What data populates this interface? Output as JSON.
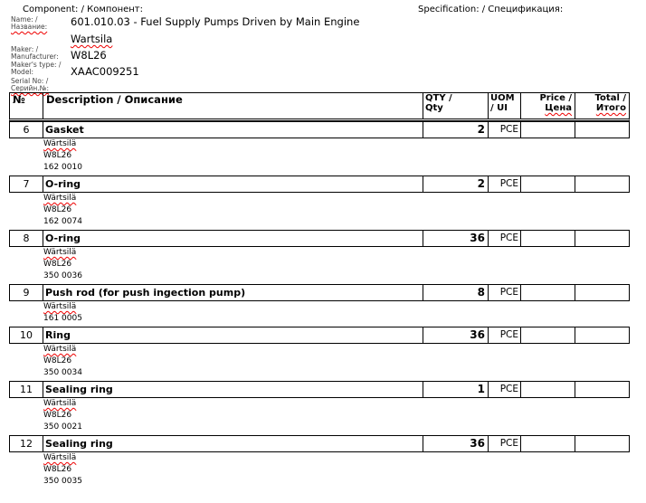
{
  "header": {
    "component_label": "Component: / Компонент:",
    "specification_label": "Specification: / Спецификация:",
    "name_label_1": "Name: /",
    "name_label_2": "Название:",
    "name_value": "601.010.03 - Fuel Supply Pumps Driven by Main Engine",
    "maker_value": "Wartsila",
    "maker_label_1": "Maker: /",
    "maker_label_2": "Manufacturer:",
    "type_value": "W8L26",
    "type_label_1": "Maker's type: /",
    "type_label_2": "Model:",
    "serial_value": "XAAC009251",
    "serial_label_1": "Serial No: /",
    "serial_label_2": "Серийн.№:"
  },
  "columns": {
    "no": "№",
    "desc": "Description / Описание",
    "qty_1": "QTY /",
    "qty_2": "Qty",
    "uom_1": "UOM",
    "uom_2": "/ UI",
    "price_1": "Price /",
    "price_2": "Цена",
    "total_1": "Total /",
    "total_2": "Итого"
  },
  "items": [
    {
      "no": "6",
      "name": "Gasket",
      "qty": "2",
      "uom": "PCE",
      "maker": "Wärtsilä",
      "model": "W8L26",
      "code": "162 0010"
    },
    {
      "no": "7",
      "name": "O-ring",
      "qty": "2",
      "uom": "PCE",
      "maker": "Wärtsilä",
      "model": "W8L26",
      "code": "162 0074"
    },
    {
      "no": "8",
      "name": "O-ring",
      "qty": "36",
      "uom": "PCE",
      "maker": "Wärtsilä",
      "model": "W8L26",
      "code": "350 0036"
    },
    {
      "no": "9",
      "name": "Push rod (for push ingection pump)",
      "qty": "8",
      "uom": "PCE",
      "maker": "Wärtsilä",
      "model": "",
      "code": "161 0005"
    },
    {
      "no": "10",
      "name": "Ring",
      "qty": "36",
      "uom": "PCE",
      "maker": "Wärtsilä",
      "model": "W8L26",
      "code": "350 0034"
    },
    {
      "no": "11",
      "name": "Sealing ring",
      "qty": "1",
      "uom": "PCE",
      "maker": "Wärtsilä",
      "model": "W8L26",
      "code": "350 0021"
    },
    {
      "no": "12",
      "name": "Sealing ring",
      "qty": "36",
      "uom": "PCE",
      "maker": "Wärtsilä",
      "model": "W8L26",
      "code": "350 0035"
    }
  ]
}
